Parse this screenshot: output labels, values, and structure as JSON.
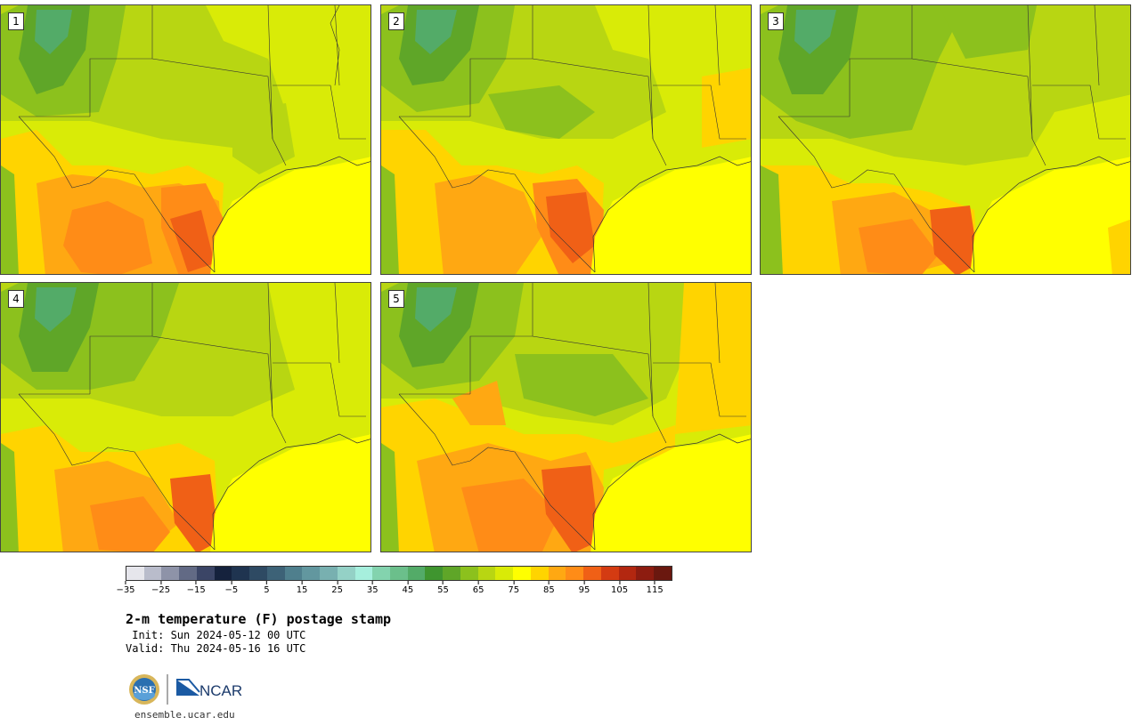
{
  "panels": [
    "1",
    "2",
    "3",
    "4",
    "5"
  ],
  "colorbar": {
    "colors": [
      "#e6e6ec",
      "#b9bccb",
      "#8e93a8",
      "#626a85",
      "#3b4566",
      "#15223d",
      "#1f3450",
      "#2e4a63",
      "#3d6277",
      "#4f7f8d",
      "#62979f",
      "#78b0b0",
      "#94d1c6",
      "#a6efdd",
      "#83d3ae",
      "#6bbf8b",
      "#53ab68",
      "#3f952f",
      "#5fa628",
      "#8cc11d",
      "#b8d612",
      "#d9eb07",
      "#ffff00",
      "#ffd400",
      "#ffa812",
      "#ff8c17",
      "#f06016",
      "#d43b12",
      "#b32710",
      "#8d1c10",
      "#6a180f"
    ],
    "tick_labels": [
      "−35",
      "−25",
      "−15",
      "−5",
      "5",
      "15",
      "25",
      "35",
      "45",
      "55",
      "65",
      "75",
      "85",
      "95",
      "105",
      "115"
    ]
  },
  "caption": {
    "title": "2-m temperature (F) postage stamp",
    "init": " Init: Sun 2024-05-12 00 UTC",
    "valid": "Valid: Thu 2024-05-16 16 UTC"
  },
  "logo": {
    "nsf_text": "NSF",
    "ncar_text": "NCAR"
  },
  "url": "ensemble.ucar.edu"
}
